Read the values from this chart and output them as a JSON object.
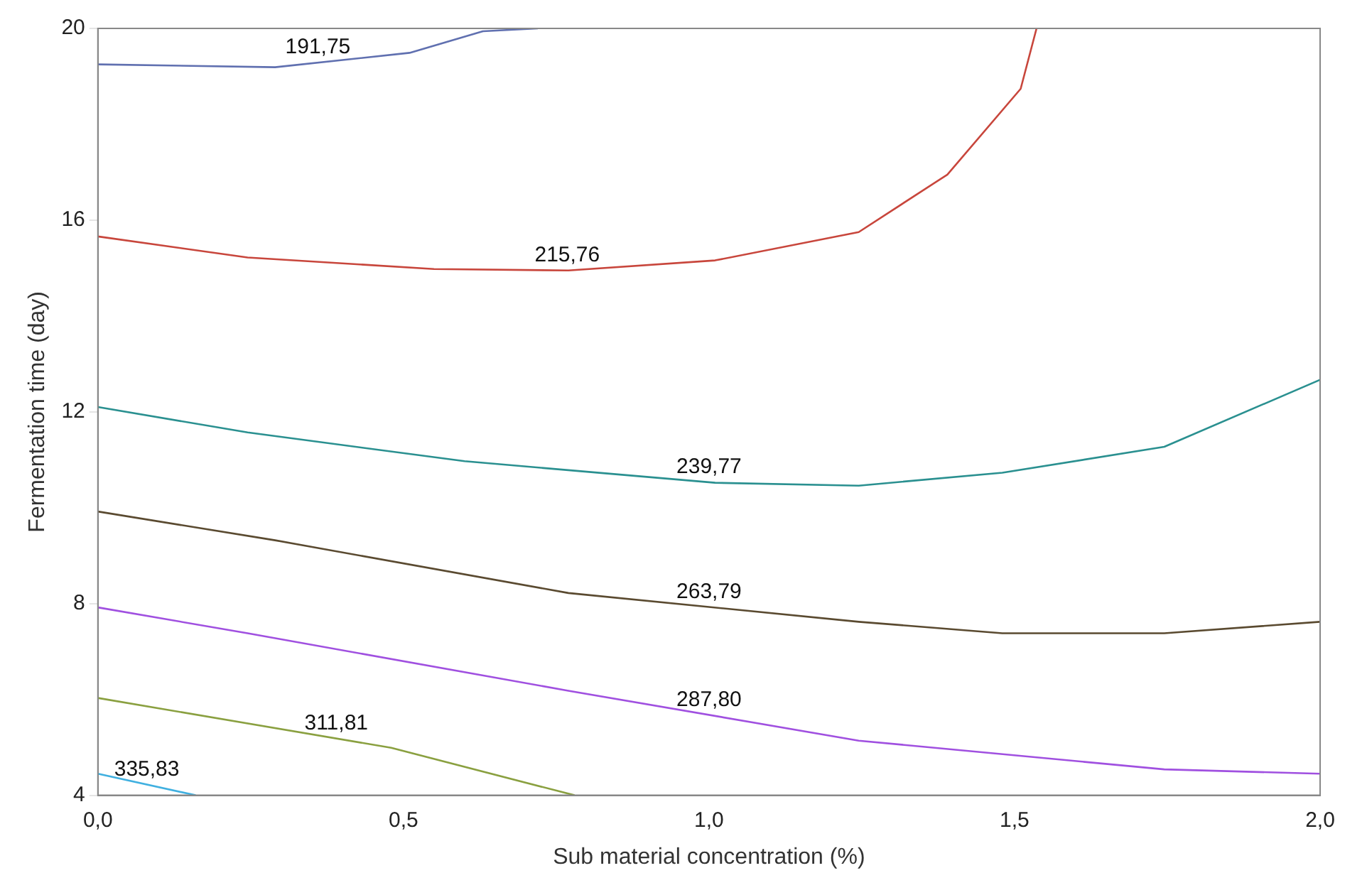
{
  "chart_data": {
    "type": "line",
    "xlabel": "Sub material concentration (%)",
    "ylabel": "Fermentation time (day)",
    "xlim": [
      0,
      2
    ],
    "ylim": [
      4,
      20
    ],
    "xticks": [
      {
        "value": 0,
        "label": "0,0"
      },
      {
        "value": 0.5,
        "label": "0,5"
      },
      {
        "value": 1,
        "label": "1,0"
      },
      {
        "value": 1.5,
        "label": "1,5"
      },
      {
        "value": 2,
        "label": "2,0"
      }
    ],
    "yticks": [
      4,
      8,
      12,
      16,
      20
    ],
    "grid": false,
    "legend": false,
    "marker": "none",
    "line_style": "solid",
    "series": [
      {
        "name": "191,75",
        "color": "#6070b0",
        "x": [
          0,
          0.29,
          0.51,
          0.63,
          0.72
        ],
        "values": [
          19.25,
          19.19,
          19.49,
          19.94,
          20
        ]
      },
      {
        "name": "215,76",
        "color": "#c8463c",
        "x": [
          0,
          0.245,
          0.55,
          0.77,
          1.01,
          1.245,
          1.39,
          1.51,
          1.536
        ],
        "values": [
          15.66,
          15.22,
          14.98,
          14.95,
          15.16,
          15.75,
          16.95,
          18.74,
          20
        ]
      },
      {
        "name": "239,77",
        "color": "#2a9090",
        "x": [
          0,
          0.245,
          0.6,
          1.01,
          1.245,
          1.48,
          1.745,
          2
        ],
        "values": [
          12.1,
          11.57,
          10.97,
          10.52,
          10.46,
          10.73,
          11.27,
          12.67
        ]
      },
      {
        "name": "263,79",
        "color": "#5a4a30",
        "x": [
          0,
          0.29,
          0.77,
          1.245,
          1.48,
          1.745,
          2
        ],
        "values": [
          9.92,
          9.32,
          8.22,
          7.62,
          7.38,
          7.38,
          7.62
        ]
      },
      {
        "name": "287,80",
        "color": "#a050e0",
        "x": [
          0,
          0.245,
          0.77,
          1.245,
          1.745,
          2
        ],
        "values": [
          7.92,
          7.38,
          6.18,
          5.14,
          4.54,
          4.45
        ]
      },
      {
        "name": "311,81",
        "color": "#8aa040",
        "x": [
          0,
          0.48,
          0.78
        ],
        "values": [
          6.03,
          4.99,
          4
        ]
      },
      {
        "name": "335,83",
        "color": "#40b0e0",
        "x": [
          0,
          0.16
        ],
        "values": [
          4.45,
          4
        ]
      }
    ]
  }
}
